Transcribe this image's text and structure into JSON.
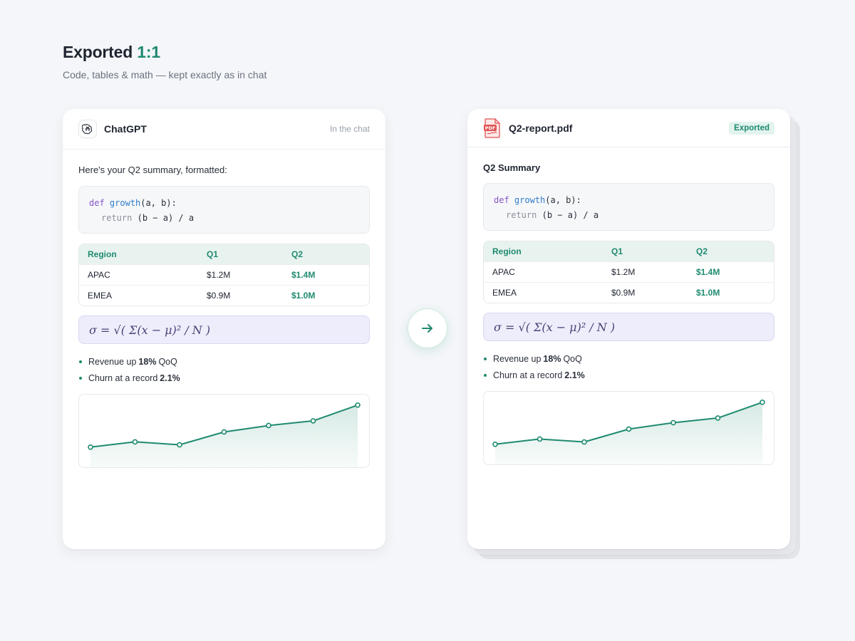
{
  "header": {
    "title": "Exported",
    "title_accent": "1:1",
    "subtitle": "Code, tables & math — kept exactly as in chat"
  },
  "colors": {
    "accent": "#1f8a70",
    "background": "#f4f6f9",
    "math_bg": "#eeedfb",
    "table_header_bg": "#e8f3ef"
  },
  "chat_card": {
    "title": "ChatGPT",
    "logo_icon": "openai-logo-icon",
    "right_label": "In the chat",
    "intro": "Here's your Q2 summary, formatted:"
  },
  "pdf_card": {
    "title": "Q2-report.pdf",
    "file_icon": "pdf-file-icon",
    "badge": "Exported",
    "section_title": "Q2 Summary"
  },
  "code": {
    "line1": {
      "kw": "def",
      "fn": "growth",
      "rest": "(a, b):"
    },
    "line2": {
      "kw": "return",
      "rest": "(b − a) / a"
    }
  },
  "table": {
    "headers": [
      "Region",
      "Q1",
      "Q2"
    ],
    "rows": [
      [
        "APAC",
        "$1.2M",
        "$1.4M"
      ],
      [
        "EMEA",
        "$0.9M",
        "$1.0M"
      ]
    ]
  },
  "math": {
    "formula": "σ = √( Σ(x − μ)² / N )"
  },
  "bullets": [
    {
      "pre": "Revenue up",
      "bold": "18%",
      "post": "QoQ"
    },
    {
      "pre": "Churn at a record",
      "bold": "2.1%",
      "post": ""
    }
  ],
  "chart_data": {
    "type": "area",
    "x": [
      1,
      2,
      3,
      4,
      5,
      6,
      7
    ],
    "values": [
      10,
      19,
      14,
      36,
      47,
      55,
      82
    ],
    "ylim": [
      0,
      100
    ],
    "grid": false,
    "title": "",
    "xlabel": "",
    "ylabel": ""
  },
  "arrow": {
    "icon": "arrow-right-icon"
  }
}
